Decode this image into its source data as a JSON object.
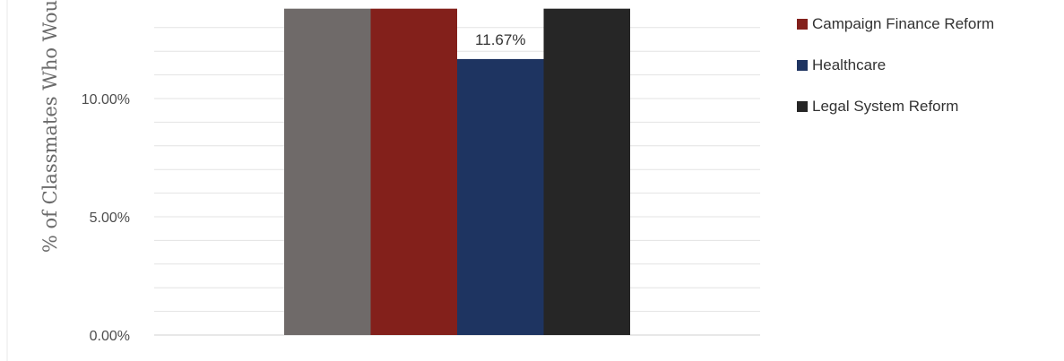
{
  "chart_data": {
    "type": "bar",
    "ylabel": "% of Classmates Who Wou",
    "yticks": [
      "0.00%",
      "5.00%",
      "10.00%"
    ],
    "ylim": [
      0,
      13.8
    ],
    "grid": true,
    "legend_position": "right",
    "series": [
      {
        "name": "",
        "value": 13.8,
        "color": "#6f6a69"
      },
      {
        "name": "Campaign Finance Reform",
        "value": 13.8,
        "color": "#83201b"
      },
      {
        "name": "Healthcare",
        "value": 11.67,
        "color": "#1e3461",
        "data_label": "11.67%"
      },
      {
        "name": "Legal System Reform",
        "value": 13.8,
        "color": "#262626"
      }
    ]
  }
}
